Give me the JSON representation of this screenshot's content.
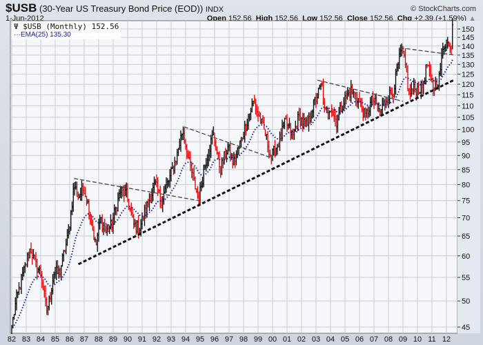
{
  "header": {
    "symbol": "$USB",
    "description": "(30-Year US Treasury Bond Price (EOD))",
    "exchange": "INDX",
    "copyright": "© StockCharts.com",
    "date": "1-Jun-2012",
    "open_label": "Open",
    "open": "152.56",
    "high_label": "High",
    "high": "152.56",
    "low_label": "Low",
    "low": "152.56",
    "close_label": "Close",
    "close": "152.56",
    "chg_label": "Chg",
    "chg": "+2.39 (+1.59%)"
  },
  "legend": {
    "series": "$USB (Monthly) 152.56",
    "ema": "EMA(25) 135.30"
  },
  "colors": {
    "up": "#000000",
    "down": "#dd0000",
    "ema": "#1a1aa0",
    "plot_bg": "#f5f7fb",
    "grid": "#c8ccd6"
  },
  "chart_data": {
    "type": "ohlc-bar",
    "scale": "log",
    "frequency": "monthly",
    "ylim": [
      44,
      154
    ],
    "xlim": [
      1982,
      2012.6
    ],
    "yticks": [
      45,
      50,
      55,
      60,
      65,
      70,
      75,
      80,
      85,
      90,
      95,
      100,
      105,
      110,
      115,
      120,
      125,
      130,
      135,
      140,
      145,
      150
    ],
    "xticks": [
      "82",
      "83",
      "84",
      "85",
      "86",
      "87",
      "88",
      "89",
      "90",
      "91",
      "92",
      "93",
      "94",
      "95",
      "96",
      "97",
      "98",
      "99",
      "00",
      "01",
      "02",
      "03",
      "04",
      "05",
      "06",
      "07",
      "08",
      "09",
      "10",
      "11",
      "12"
    ],
    "close_keyframes": [
      [
        1982.0,
        45
      ],
      [
        1982.3,
        50
      ],
      [
        1982.8,
        56
      ],
      [
        1983.3,
        62
      ],
      [
        1983.6,
        58
      ],
      [
        1984.0,
        56
      ],
      [
        1984.4,
        48
      ],
      [
        1984.6,
        50
      ],
      [
        1984.9,
        56
      ],
      [
        1985.3,
        56
      ],
      [
        1985.9,
        65
      ],
      [
        1986.1,
        72
      ],
      [
        1986.3,
        80
      ],
      [
        1986.6,
        76
      ],
      [
        1987.0,
        79
      ],
      [
        1987.3,
        73
      ],
      [
        1987.8,
        62
      ],
      [
        1988.1,
        70
      ],
      [
        1988.5,
        66
      ],
      [
        1988.9,
        68
      ],
      [
        1989.5,
        78
      ],
      [
        1989.9,
        77
      ],
      [
        1990.4,
        68
      ],
      [
        1990.8,
        67
      ],
      [
        1991.3,
        73
      ],
      [
        1991.9,
        80
      ],
      [
        1992.3,
        75
      ],
      [
        1992.9,
        82
      ],
      [
        1993.4,
        90
      ],
      [
        1993.8,
        100
      ],
      [
        1994.2,
        88
      ],
      [
        1994.9,
        75
      ],
      [
        1995.3,
        86
      ],
      [
        1995.9,
        98
      ],
      [
        1996.4,
        85
      ],
      [
        1996.9,
        93
      ],
      [
        1997.3,
        87
      ],
      [
        1997.9,
        97
      ],
      [
        1998.7,
        112
      ],
      [
        1998.9,
        108
      ],
      [
        1999.5,
        98
      ],
      [
        1999.9,
        89
      ],
      [
        2000.5,
        96
      ],
      [
        2000.9,
        103
      ],
      [
        2001.4,
        97
      ],
      [
        2001.8,
        105
      ],
      [
        2002.4,
        101
      ],
      [
        2002.8,
        110
      ],
      [
        2003.4,
        120
      ],
      [
        2003.6,
        106
      ],
      [
        2004.0,
        110
      ],
      [
        2004.4,
        103
      ],
      [
        2004.9,
        112
      ],
      [
        2005.4,
        117
      ],
      [
        2005.9,
        113
      ],
      [
        2006.4,
        105
      ],
      [
        2006.9,
        113
      ],
      [
        2007.4,
        107
      ],
      [
        2007.9,
        114
      ],
      [
        2008.3,
        116
      ],
      [
        2008.9,
        138
      ],
      [
        2009.2,
        128
      ],
      [
        2009.4,
        116
      ],
      [
        2009.9,
        118
      ],
      [
        2010.3,
        118
      ],
      [
        2010.7,
        131
      ],
      [
        2010.9,
        121
      ],
      [
        2011.1,
        118
      ],
      [
        2011.5,
        123
      ],
      [
        2011.8,
        140
      ],
      [
        2012.0,
        143
      ],
      [
        2012.3,
        137
      ],
      [
        2012.42,
        152.56
      ]
    ],
    "ema_period": 25,
    "trendlines": [
      {
        "name": "support",
        "style": "bold-dashed",
        "from": [
          1986.6,
          58
        ],
        "to": [
          2012.5,
          122
        ]
      },
      {
        "name": "resistance-1",
        "style": "dashed",
        "from": [
          1986.3,
          82
        ],
        "to": [
          1994.9,
          75
        ]
      },
      {
        "name": "resistance-2",
        "style": "dashed",
        "from": [
          1993.9,
          101
        ],
        "to": [
          2000.0,
          89
        ]
      },
      {
        "name": "resistance-3",
        "style": "dashed",
        "from": [
          2003.1,
          122
        ],
        "to": [
          2009.0,
          112
        ]
      },
      {
        "name": "resistance-4",
        "style": "dashed",
        "from": [
          2008.8,
          139
        ],
        "to": [
          2012.6,
          135
        ]
      }
    ]
  }
}
